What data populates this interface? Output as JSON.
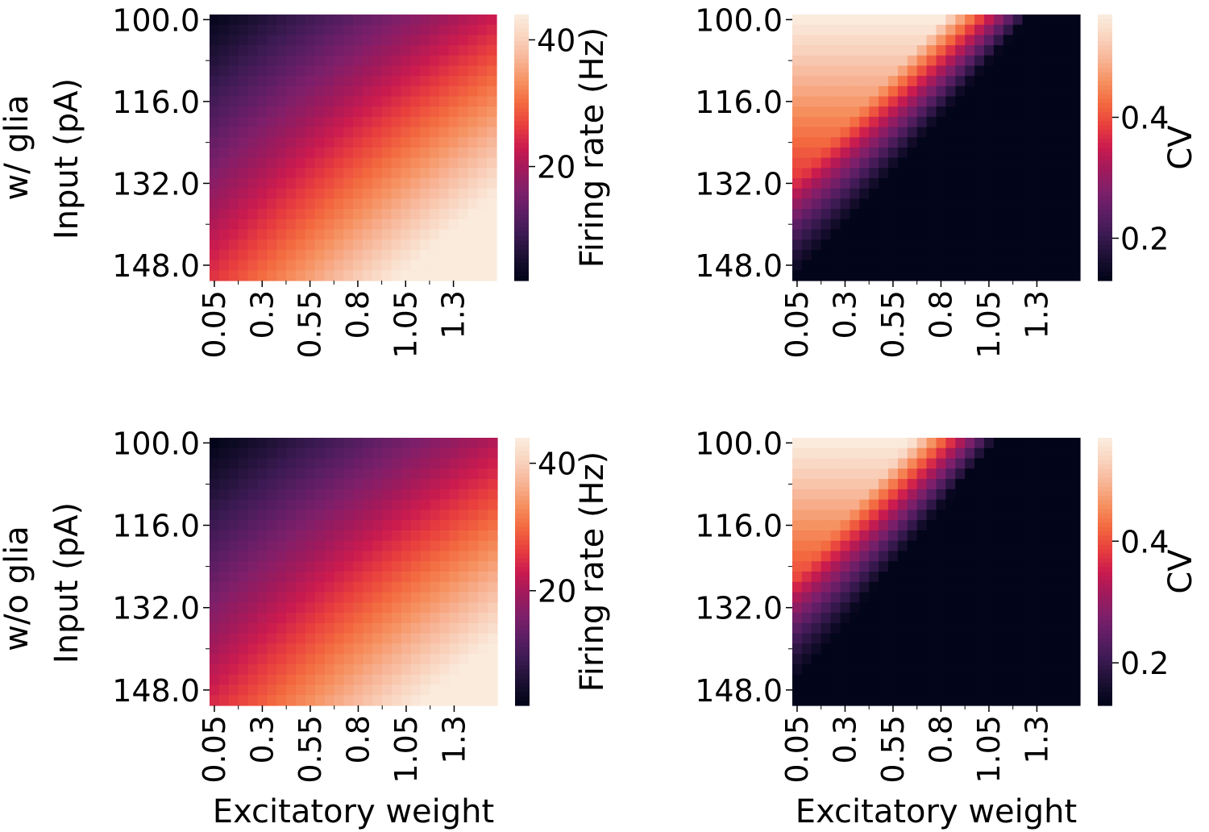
{
  "figure": {
    "row_labels": [
      "w/ glia",
      "w/o glia"
    ],
    "shared_xlabel": "Excitatory weight",
    "shared_ylabel": "Input (pA)"
  },
  "chart_data": [
    {
      "type": "heatmap",
      "panel": "top-left",
      "row_label": "w/ glia",
      "metric": "firing_rate",
      "xlabel": "",
      "ylabel": "Input (pA)",
      "xtick_labels": [
        "0.05",
        "0.3",
        "0.55",
        "0.8",
        "1.05",
        "1.3"
      ],
      "ytick_labels": [
        "100.0",
        "116.0",
        "132.0",
        "148.0"
      ],
      "x_range": [
        0.05,
        1.5
      ],
      "y_range": [
        100,
        150
      ],
      "colorbar": {
        "label": "Firing rate (Hz)",
        "ticks": [
          "20",
          "40"
        ],
        "range": [
          2,
          44
        ],
        "colormap": "rocket"
      },
      "model": {
        "base": 2,
        "input_gain": 0.45,
        "weight_gain": 14,
        "interaction": 0.1
      }
    },
    {
      "type": "heatmap",
      "panel": "top-right",
      "row_label": "w/ glia",
      "metric": "cv",
      "xlabel": "",
      "ylabel": "",
      "xtick_labels": [
        "0.05",
        "0.3",
        "0.55",
        "0.8",
        "1.05",
        "1.3"
      ],
      "ytick_labels": [
        "100.0",
        "116.0",
        "132.0",
        "148.0"
      ],
      "x_range": [
        0.05,
        1.5
      ],
      "y_range": [
        100,
        150
      ],
      "colorbar": {
        "label": "CV",
        "ticks": [
          "0.2",
          "0.4"
        ],
        "range": [
          0.13,
          0.57
        ],
        "colormap": "rocket"
      },
      "model": {
        "boundary_weight_at_100pA": 1.25,
        "boundary_input_at_min_weight": 150,
        "peak": 0.57,
        "floor": 0.13
      }
    },
    {
      "type": "heatmap",
      "panel": "bottom-left",
      "row_label": "w/o glia",
      "metric": "firing_rate",
      "xlabel": "Excitatory weight",
      "ylabel": "Input (pA)",
      "xtick_labels": [
        "0.05",
        "0.3",
        "0.55",
        "0.8",
        "1.05",
        "1.3"
      ],
      "ytick_labels": [
        "100.0",
        "116.0",
        "132.0",
        "148.0"
      ],
      "x_range": [
        0.05,
        1.5
      ],
      "y_range": [
        100,
        150
      ],
      "colorbar": {
        "label": "Firing rate (Hz)",
        "ticks": [
          "20",
          "40"
        ],
        "range": [
          2,
          44
        ],
        "colormap": "rocket"
      },
      "model": {
        "base": 1.5,
        "input_gain": 0.44,
        "weight_gain": 13,
        "interaction": 0.1
      }
    },
    {
      "type": "heatmap",
      "panel": "bottom-right",
      "row_label": "w/o glia",
      "metric": "cv",
      "xlabel": "Excitatory weight",
      "ylabel": "",
      "xtick_labels": [
        "0.05",
        "0.3",
        "0.55",
        "0.8",
        "1.05",
        "1.3"
      ],
      "ytick_labels": [
        "100.0",
        "116.0",
        "132.0",
        "148.0"
      ],
      "x_range": [
        0.05,
        1.5
      ],
      "y_range": [
        100,
        150
      ],
      "colorbar": {
        "label": "CV",
        "ticks": [
          "0.2",
          "0.4"
        ],
        "range": [
          0.13,
          0.57
        ],
        "colormap": "rocket"
      },
      "model": {
        "boundary_weight_at_100pA": 1.08,
        "boundary_input_at_min_weight": 146,
        "peak": 0.57,
        "floor": 0.13
      }
    }
  ],
  "colormap_rocket": [
    "#03051a",
    "#1c1033",
    "#3b1a52",
    "#5c1e63",
    "#7f1f6a",
    "#a11a5b",
    "#cb1b4f",
    "#e83e3e",
    "#f3693f",
    "#f6905f",
    "#f7b394",
    "#f9d2bd",
    "#faebdd"
  ]
}
